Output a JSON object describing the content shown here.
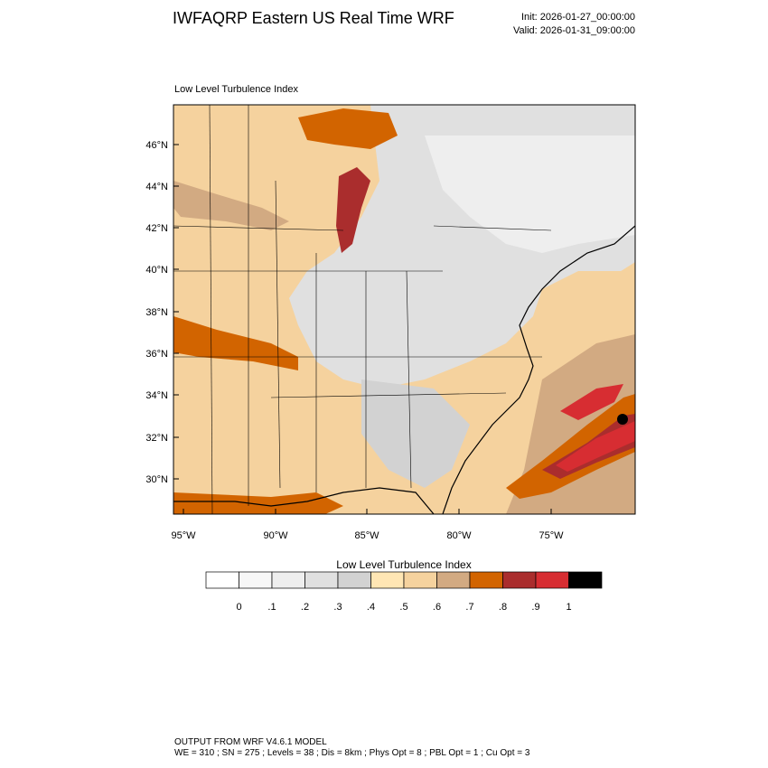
{
  "header": {
    "title": "IWFAQRP Eastern US Real Time WRF",
    "init": "Init: 2026-01-27_00:00:00",
    "valid": "Valid: 2026-01-31_09:00:00"
  },
  "map": {
    "field_label": "Low Level Turbulence Index",
    "lat_labels": [
      "46°N",
      "44°N",
      "42°N",
      "40°N",
      "38°N",
      "36°N",
      "34°N",
      "32°N",
      "30°N"
    ],
    "lon_labels": [
      "95°W",
      "90°W",
      "85°W",
      "80°W",
      "75°W"
    ]
  },
  "colorbar": {
    "title": "Low Level Turbulence Index",
    "colors": [
      "#ffffff",
      "#f7f7f7",
      "#eeeeee",
      "#e0e0e0",
      "#d2d2d2",
      "#ffe6b4",
      "#f5d29e",
      "#d2aa82",
      "#d26400",
      "#aa2d2d",
      "#d72d32",
      "#000000"
    ],
    "tick_labels": [
      "0",
      ".1",
      ".2",
      ".3",
      ".4",
      ".5",
      ".6",
      ".7",
      ".8",
      ".9",
      "1"
    ]
  },
  "footer": {
    "line1": "OUTPUT FROM WRF V4.6.1 MODEL",
    "line2": "WE = 310 ; SN = 275 ; Levels = 38 ; Dis = 8km ; Phys Opt = 8 ; PBL Opt = 1 ; Cu Opt = 3"
  }
}
